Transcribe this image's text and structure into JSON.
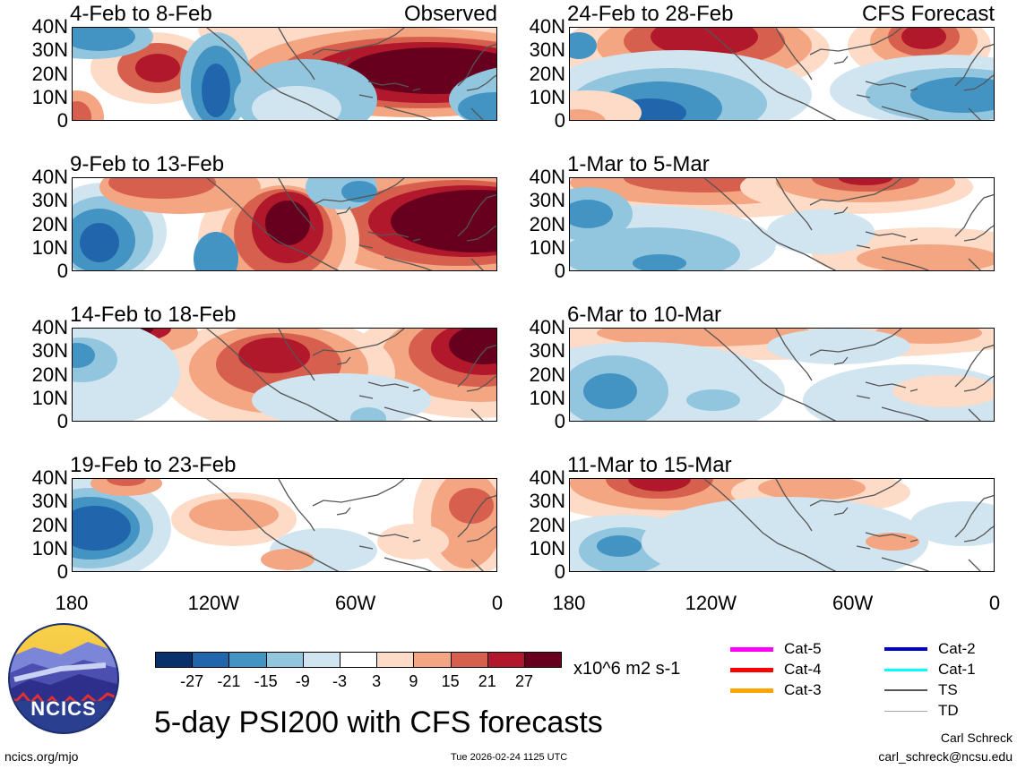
{
  "colors": {
    "levels": [
      "#08306b",
      "#2166ac",
      "#4393c3",
      "#92c5de",
      "#d1e5f0",
      "#ffffff",
      "#fddbc7",
      "#f4a582",
      "#d6604d",
      "#b2182b",
      "#67001f"
    ],
    "land": "#555555"
  },
  "panels": {
    "left": [
      {
        "label": "4-Feb to 8-Feb",
        "tag": "Observed"
      },
      {
        "label": "9-Feb to 13-Feb",
        "tag": ""
      },
      {
        "label": "14-Feb to 18-Feb",
        "tag": ""
      },
      {
        "label": "19-Feb to 23-Feb",
        "tag": ""
      }
    ],
    "right": [
      {
        "label": "24-Feb to 28-Feb",
        "tag": "CFS Forecast"
      },
      {
        "label": "1-Mar to 5-Mar",
        "tag": ""
      },
      {
        "label": "6-Mar to 10-Mar",
        "tag": ""
      },
      {
        "label": "11-Mar to 15-Mar",
        "tag": ""
      }
    ]
  },
  "lat_ticks": [
    "40N",
    "30N",
    "20N",
    "10N",
    "0"
  ],
  "lon_ticks": [
    "180",
    "120W",
    "60W",
    "0"
  ],
  "colorbar": {
    "ticks": [
      "-27",
      "-21",
      "-15",
      "-9",
      "-3",
      "3",
      "9",
      "15",
      "21",
      "27"
    ],
    "units": "x10^6 m2 s-1"
  },
  "legend": [
    {
      "label": "Cat-5",
      "color": "#ff00ff",
      "width": 5
    },
    {
      "label": "Cat-4",
      "color": "#ff0000",
      "width": 5
    },
    {
      "label": "Cat-3",
      "color": "#ffa500",
      "width": 5
    },
    {
      "label": "Cat-2",
      "color": "#0000cd",
      "width": 4
    },
    {
      "label": "Cat-1",
      "color": "#00ffff",
      "width": 3
    },
    {
      "label": "TS",
      "color": "#555555",
      "width": 2
    },
    {
      "label": "TD",
      "color": "#aaaaaa",
      "width": 1
    }
  ],
  "logo": {
    "text": "NCICS"
  },
  "title": "5-day PSI200 with CFS forecasts",
  "footer": {
    "site": "ncics.org/mjo",
    "timestamp": "Tue 2026-02-24 1125 UTC",
    "author": "Carl Schreck",
    "email": "carl_schreck@ncsu.edu"
  }
}
